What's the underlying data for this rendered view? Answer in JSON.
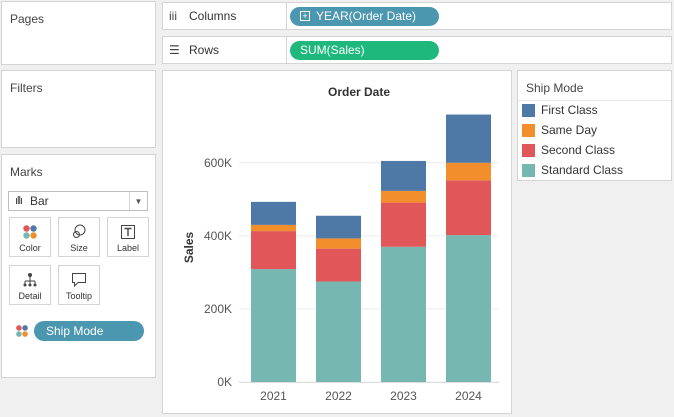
{
  "panels": {
    "pages_title": "Pages",
    "filters_title": "Filters",
    "marks_title": "Marks"
  },
  "shelves": {
    "columns_label": "Columns",
    "columns_pill": "YEAR(Order Date)",
    "rows_label": "Rows",
    "rows_pill": "SUM(Sales)"
  },
  "marks": {
    "mark_type": "Bar",
    "buttons": {
      "color": "Color",
      "size": "Size",
      "label": "Label",
      "detail": "Detail",
      "tooltip": "Tooltip"
    },
    "color_pill": "Ship Mode"
  },
  "legend": {
    "title": "Ship Mode",
    "items": [
      {
        "label": "First Class",
        "color": "#4e79a7"
      },
      {
        "label": "Same Day",
        "color": "#f28e2b"
      },
      {
        "label": "Second Class",
        "color": "#e15759"
      },
      {
        "label": "Standard Class",
        "color": "#76b7b2"
      }
    ]
  },
  "chart_data": {
    "type": "bar",
    "stacked": true,
    "title": "Order Date",
    "xlabel": "",
    "ylabel": "Sales",
    "categories": [
      "2021",
      "2022",
      "2023",
      "2024"
    ],
    "series": [
      {
        "name": "Standard Class",
        "color": "#76b7b2",
        "values": [
          309000,
          275000,
          370000,
          402000
        ]
      },
      {
        "name": "Second Class",
        "color": "#e15759",
        "values": [
          104000,
          90000,
          121000,
          150000
        ]
      },
      {
        "name": "Same Day",
        "color": "#f28e2b",
        "values": [
          17000,
          28000,
          32000,
          48000
        ]
      },
      {
        "name": "First Class",
        "color": "#4e79a7",
        "values": [
          63000,
          62000,
          82000,
          132000
        ]
      }
    ],
    "ylim": [
      0,
      780000
    ],
    "yticks": [
      0,
      200000,
      400000,
      600000
    ],
    "ytick_labels": [
      "0K",
      "200K",
      "400K",
      "600K"
    ],
    "grid": true
  }
}
